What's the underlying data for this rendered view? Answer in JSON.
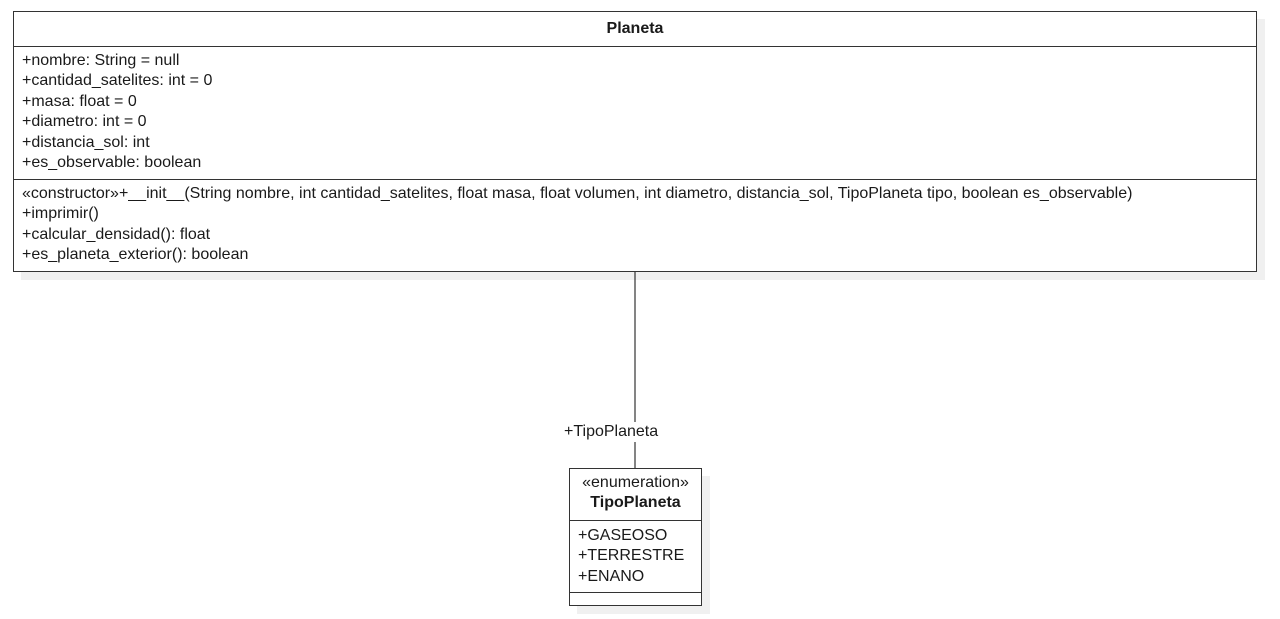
{
  "planeta": {
    "name": "Planeta",
    "attributes": [
      "+nombre: String = null",
      "+cantidad_satelites: int = 0",
      "+masa: float = 0",
      "+diametro: int = 0",
      "+distancia_sol: int",
      "+es_observable: boolean"
    ],
    "operations": [
      "«constructor»+__init__(String nombre, int cantidad_satelites, float masa, float volumen, int diametro, distancia_sol, TipoPlaneta tipo, boolean es_observable)",
      "+imprimir()",
      "+calcular_densidad(): float",
      "+es_planeta_exterior(): boolean"
    ]
  },
  "association": {
    "role": "+TipoPlaneta"
  },
  "tipo_planeta": {
    "stereotype": "«enumeration»",
    "name": "TipoPlaneta",
    "literals": [
      "+GASEOSO",
      "+TERRESTRE",
      "+ENANO"
    ]
  }
}
